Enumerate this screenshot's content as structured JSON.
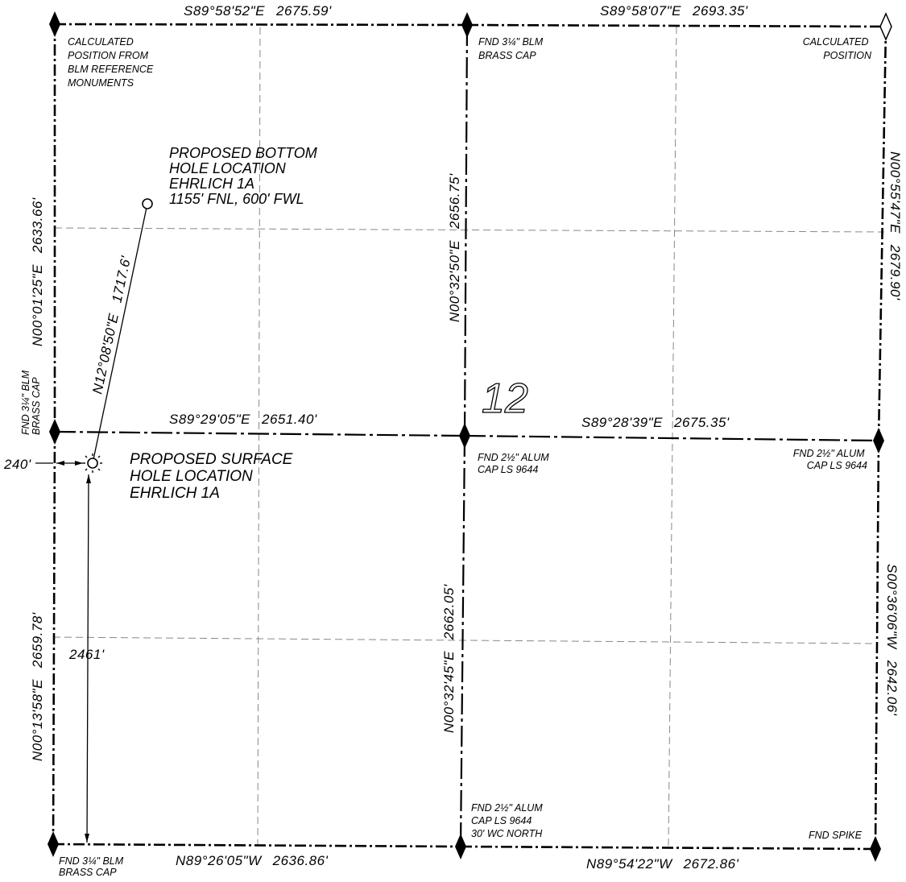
{
  "section_number": "12",
  "boundaries": {
    "north_west": {
      "bearing": "S89°58'52\"E",
      "distance": "2675.59'"
    },
    "north_east": {
      "bearing": "S89°58'07\"E",
      "distance": "2693.35'"
    },
    "mid_west": {
      "bearing": "S89°29'05\"E",
      "distance": "2651.40'"
    },
    "mid_east": {
      "bearing": "S89°28'39\"E",
      "distance": "2675.35'"
    },
    "south_west": {
      "bearing": "N89°26'05\"W",
      "distance": "2636.86'"
    },
    "south_east": {
      "bearing": "N89°54'22\"W",
      "distance": "2672.86'"
    },
    "west_north": {
      "bearing": "N00°01'25\"E",
      "distance": "2633.66'"
    },
    "west_south": {
      "bearing": "N00°13'58\"E",
      "distance": "2659.78'"
    },
    "center_north": {
      "bearing": "N00°32'50\"E",
      "distance": "2656.75'"
    },
    "center_south": {
      "bearing": "N00°32'45\"E",
      "distance": "2662.05'"
    },
    "east_north": {
      "bearing": "N00°55'47\"E",
      "distance": "2679.90'"
    },
    "east_south": {
      "bearing": "S00°36'06\"W",
      "distance": "2642.06'"
    }
  },
  "monument_notes": {
    "nw_corner": [
      "CALCULATED",
      "POSITION FROM",
      "BLM REFERENCE",
      "MONUMENTS"
    ],
    "n_quarter": [
      "FND 3¼\" BLM",
      "BRASS CAP"
    ],
    "ne_corner": [
      "CALCULATED",
      "POSITION"
    ],
    "w_quarter": [
      "FND 3¼\" BLM",
      "BRASS CAP"
    ],
    "center": [
      "FND 2½\" ALUM",
      "CAP LS 9644"
    ],
    "e_quarter": [
      "FND 2½\" ALUM",
      "CAP LS 9644"
    ],
    "s_quarter": [
      "FND 2½\" ALUM",
      "CAP LS 9644",
      "30' WC NORTH"
    ],
    "sw_corner": [
      "FND 3¼\" BLM",
      "BRASS CAP"
    ],
    "se_corner": [
      "FND SPIKE"
    ]
  },
  "bottom_hole": {
    "lines": [
      "PROPOSED BOTTOM",
      "HOLE LOCATION",
      "EHRLICH 1A",
      "1155' FNL, 600' FWL"
    ]
  },
  "surface_hole": {
    "lines": [
      "PROPOSED SURFACE",
      "HOLE LOCATION",
      "EHRLICH 1A"
    ]
  },
  "well_path": {
    "bearing": "N12°08'50\"E",
    "distance": "1717.6'"
  },
  "offsets": {
    "from_west": "240'",
    "from_south": "2461'"
  }
}
